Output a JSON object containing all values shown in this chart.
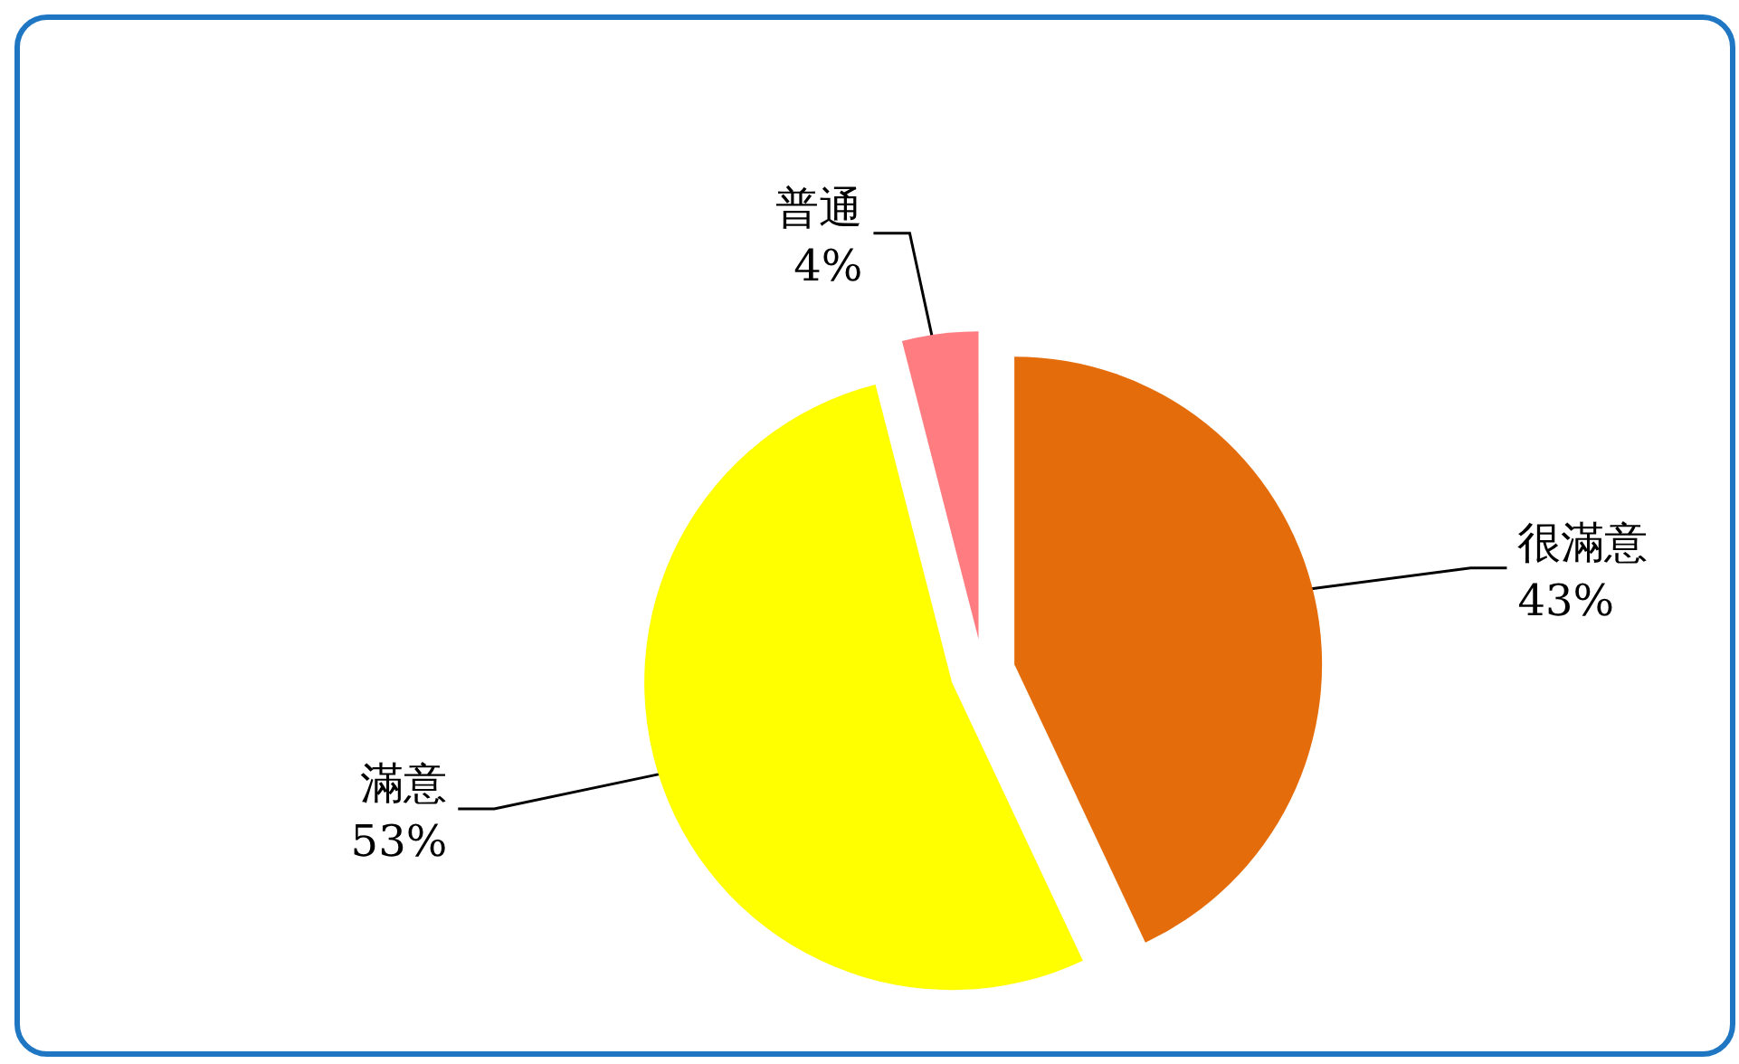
{
  "chart_data": {
    "type": "pie",
    "categories": [
      "很滿意",
      "滿意",
      "普通"
    ],
    "values": [
      43,
      53,
      4
    ],
    "value_labels": [
      "43%",
      "53%",
      "4%"
    ],
    "colors": [
      "#e46c0a",
      "#ffff00",
      "#ff7c80"
    ]
  }
}
